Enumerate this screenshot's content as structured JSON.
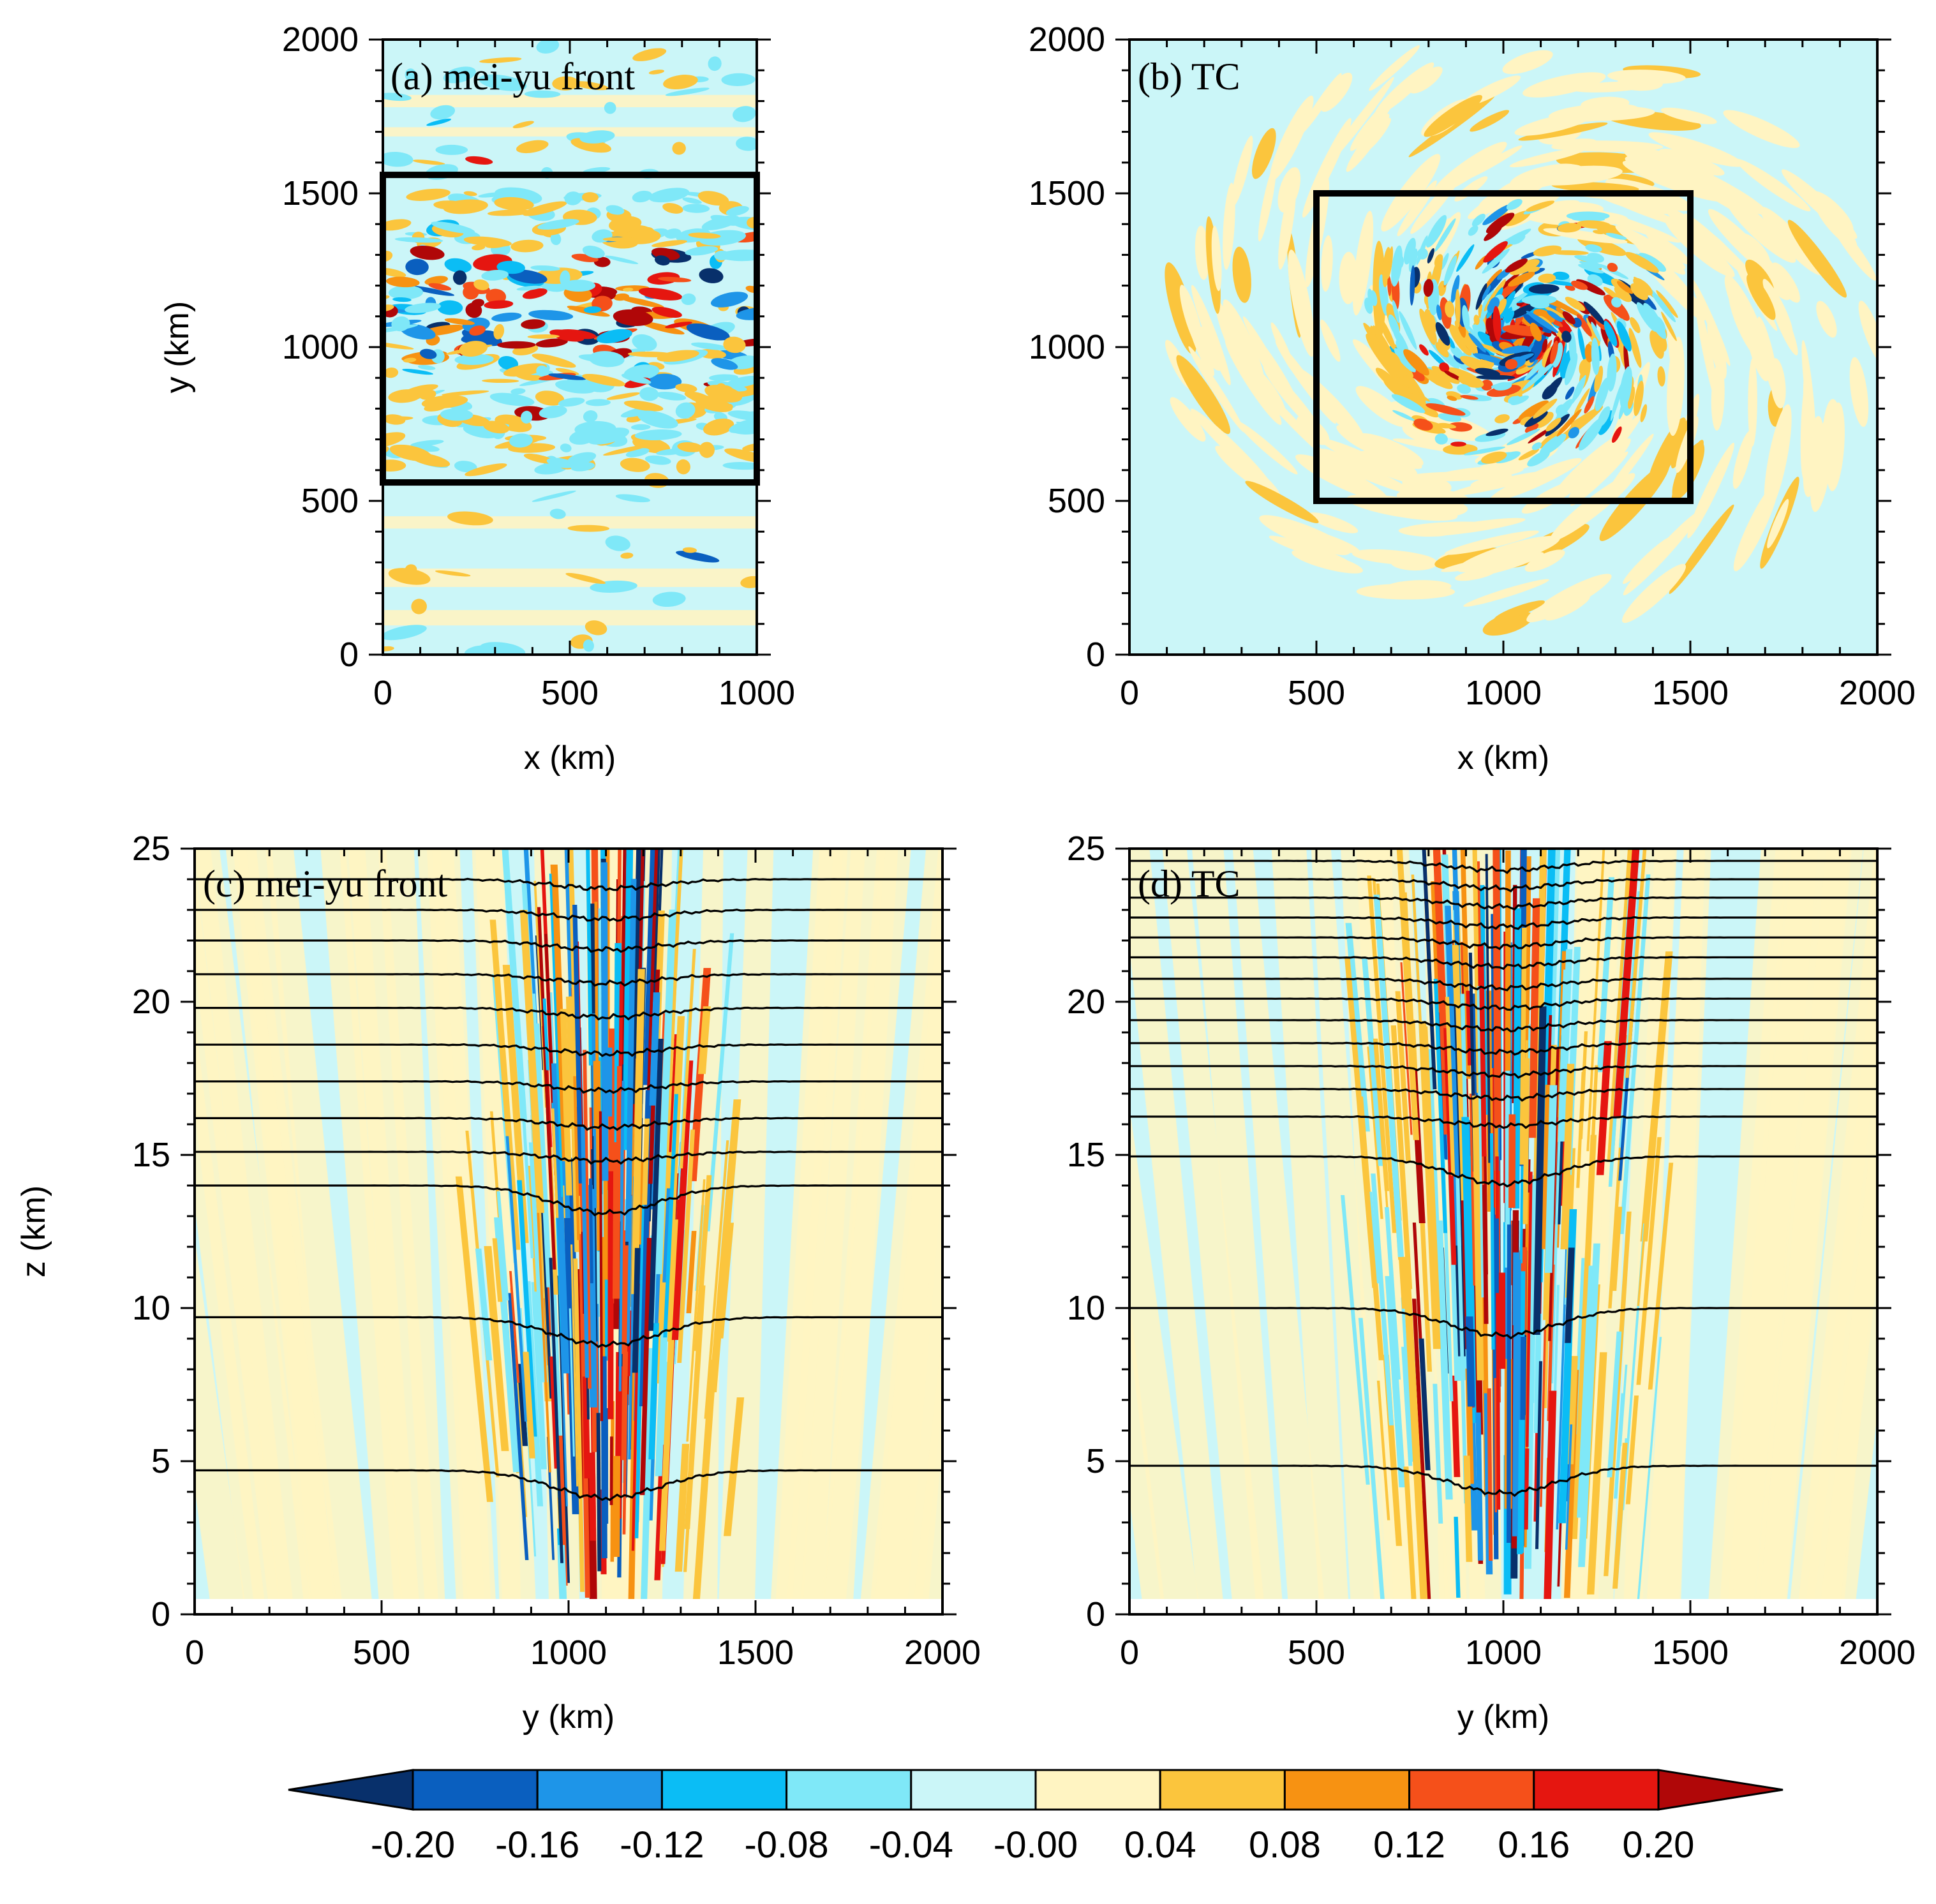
{
  "chart_data": [
    {
      "type": "heatmap",
      "panel": "a",
      "title": "(a) mei-yu front",
      "xlabel": "x (km)",
      "ylabel": "y (km)",
      "xlim": [
        0,
        1000
      ],
      "ylim": [
        0,
        2000
      ],
      "xticks": [
        0,
        500,
        1000
      ],
      "yticks": [
        0,
        500,
        1000,
        1500,
        2000
      ],
      "box": {
        "x0": 0,
        "x1": 1000,
        "y0": 560,
        "y1": 1560
      },
      "description_values": "horizontal field, strong perturbations concentrated near y=900-1400 km"
    },
    {
      "type": "heatmap",
      "panel": "b",
      "title": "(b) TC",
      "xlabel": "x (km)",
      "ylabel": "",
      "xlim": [
        0,
        2000
      ],
      "ylim": [
        0,
        2000
      ],
      "xticks": [
        0,
        500,
        1000,
        1500,
        2000
      ],
      "yticks": [
        0,
        500,
        1000,
        1500,
        2000
      ],
      "box": {
        "x0": 500,
        "x1": 1500,
        "y0": 500,
        "y1": 1500
      },
      "description_values": "spiral pattern centered near (1050, 1050) km"
    },
    {
      "type": "heatmap",
      "panel": "c",
      "title": "(c) mei-yu front",
      "xlabel": "y (km)",
      "ylabel": "z (km)",
      "xlim": [
        0,
        2000
      ],
      "ylim": [
        0,
        25
      ],
      "xticks": [
        0,
        500,
        1000,
        1500,
        2000
      ],
      "yticks": [
        0,
        5,
        10,
        15,
        20,
        25
      ],
      "contour_levels_z": [
        4.7,
        9.7,
        14.0,
        15.1,
        16.2,
        17.4,
        18.6,
        19.8,
        20.9,
        22.0,
        23.0,
        24.0
      ],
      "core_y": 1100
    },
    {
      "type": "heatmap",
      "panel": "d",
      "title": "(d) TC",
      "xlabel": "y (km)",
      "ylabel": "",
      "xlim": [
        0,
        2000
      ],
      "ylim": [
        0,
        25
      ],
      "xticks": [
        0,
        500,
        1000,
        1500,
        2000
      ],
      "yticks": [
        0,
        5,
        10,
        15,
        20,
        25
      ],
      "contour_levels_z": [
        4.85,
        10.0,
        14.95,
        16.25,
        17.15,
        17.9,
        18.65,
        19.4,
        20.1,
        20.75,
        21.45,
        22.1,
        22.75,
        23.4,
        24.0,
        24.6
      ],
      "core_y": 1000
    }
  ],
  "colorbar": {
    "levels": [
      "-0.20",
      "-0.16",
      "-0.12",
      "-0.08",
      "-0.04",
      "-0.00",
      "0.04",
      "0.08",
      "0.12",
      "0.16",
      "0.20"
    ],
    "colors": [
      "#08306b",
      "#0a5fbf",
      "#1e95e8",
      "#0bbdf5",
      "#7fe8f8",
      "#cbf6f8",
      "#fff4c2",
      "#fbc53d",
      "#f79212",
      "#f5501a",
      "#e51610",
      "#b00708"
    ]
  }
}
